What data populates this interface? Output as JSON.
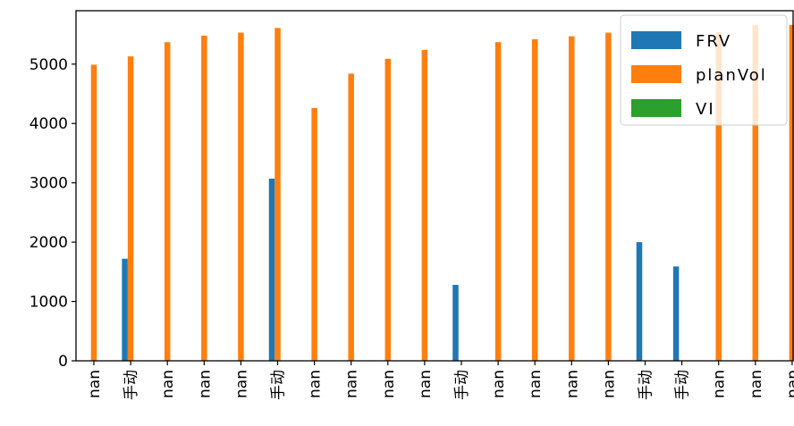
{
  "chart_data": {
    "type": "bar",
    "categories": [
      "nan",
      "手动",
      "nan",
      "nan",
      "nan",
      "手动",
      "nan",
      "nan",
      "nan",
      "nan",
      "手动",
      "nan",
      "nan",
      "nan",
      "nan",
      "手动",
      "手动",
      "nan",
      "nan",
      "nan"
    ],
    "series": [
      {
        "name": "FRV",
        "color": "#1f77b4",
        "values": [
          0,
          1720,
          0,
          0,
          0,
          3070,
          0,
          0,
          0,
          0,
          1280,
          0,
          0,
          0,
          0,
          2000,
          1590,
          0,
          0,
          0
        ]
      },
      {
        "name": "planVol",
        "color": "#ff7f0e",
        "values": [
          4990,
          5130,
          5370,
          5480,
          5530,
          5610,
          4260,
          4840,
          5090,
          5240,
          0,
          5370,
          5420,
          5470,
          5530,
          0,
          0,
          5540,
          5660,
          5660
        ]
      },
      {
        "name": "VI",
        "color": "#2ca02c",
        "values": [
          0,
          0,
          0,
          0,
          0,
          0,
          0,
          0,
          0,
          0,
          0,
          0,
          0,
          0,
          0,
          0,
          0,
          0,
          0,
          0
        ]
      }
    ],
    "ylim": [
      0,
      5900
    ],
    "yticks": [
      "0",
      "1000",
      "2000",
      "3000",
      "4000",
      "5000"
    ],
    "legend_position": "top-right",
    "grid": false
  }
}
